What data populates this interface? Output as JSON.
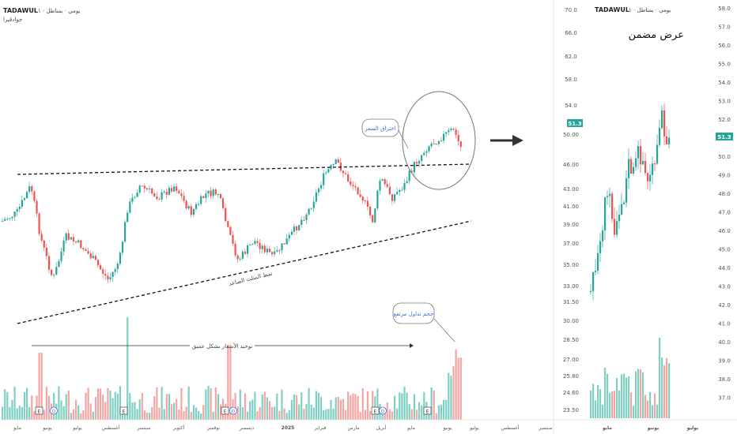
{
  "left_panel": {
    "symbol": "TADAWUL",
    "header_sub": "يومي · بمناطل · ١",
    "header_line2": "جوادقيرا",
    "price_axis": [],
    "time_axis": [
      "مايو",
      "يونيو",
      "يوليو",
      "أغسطس",
      "سبتمبر",
      "أكتوبر",
      "نوفمبر",
      "ديسمبر",
      "2025",
      "فبراير",
      "مارس",
      "أبريل",
      "مايو",
      "يونيو",
      "يوليو",
      "أغسطس",
      "سبتمبر"
    ],
    "annotations": {
      "breakout": "اختراق السعر",
      "triangle": "نمط المثلث الصاعد",
      "consolidation": "توحيد الأسعار بشكل عميق",
      "volume": "حجم تداول مرتفع"
    },
    "events": [
      "E",
      "D",
      "E",
      "E",
      "D",
      "E",
      "D",
      "E"
    ]
  },
  "right_panel": {
    "symbol": "TADAWUL",
    "header_sub": "يومي · بمناطل · ١",
    "title": "عرض مضمن",
    "price_axis_inner": [
      "70.0",
      "66.0",
      "62.0",
      "58.0",
      "54.0",
      "50.00",
      "46.00",
      "43.00",
      "41.00",
      "39.00",
      "37.00",
      "35.00",
      "33.00",
      "31.50",
      "30.00",
      "28.50",
      "27.00",
      "25.80",
      "24.60",
      "23.50"
    ],
    "price_axis_outer": [
      "58.0",
      "57.0",
      "56.0",
      "55.0",
      "54.0",
      "53.0",
      "52.0",
      "51.0",
      "50.0",
      "49.0",
      "48.0",
      "47.0",
      "46.0",
      "45.0",
      "44.0",
      "43.0",
      "42.0",
      "41.0",
      "40.0",
      "39.0",
      "38.0",
      "37.0"
    ],
    "current_price_badge": "51.3",
    "current_price_badge_outer": "51.3",
    "time_axis": [
      "مايو",
      "يونيو",
      "يوليو"
    ]
  },
  "colors": {
    "up": "#26a69a",
    "down": "#ef5350",
    "vol_up": "#7fd0c3",
    "vol_down": "#f4a5a2",
    "badge": "#26a69a",
    "note": "#2f6fd6"
  },
  "chart_data": [
    {
      "type": "candlestick",
      "title": "",
      "x_labels": [
        "مايو",
        "يونيو",
        "يوليو",
        "أغسطس",
        "سبتمبر",
        "أكتوبر",
        "نوفمبر",
        "ديسمبر",
        "2025",
        "فبراير",
        "مارس",
        "أبريل",
        "مايو",
        "يونيو",
        "يوليو",
        "أغسطس",
        "سبتمبر"
      ],
      "price_range_est": [
        31,
        47
      ],
      "pattern": "ascending triangle with breakout",
      "has_volume": true
    },
    {
      "type": "candlestick",
      "x_labels": [
        "مايو",
        "يونيو",
        "يوليو"
      ],
      "ylim": [
        23.5,
        70.0
      ],
      "last_price": 51.3,
      "has_volume": true
    }
  ]
}
